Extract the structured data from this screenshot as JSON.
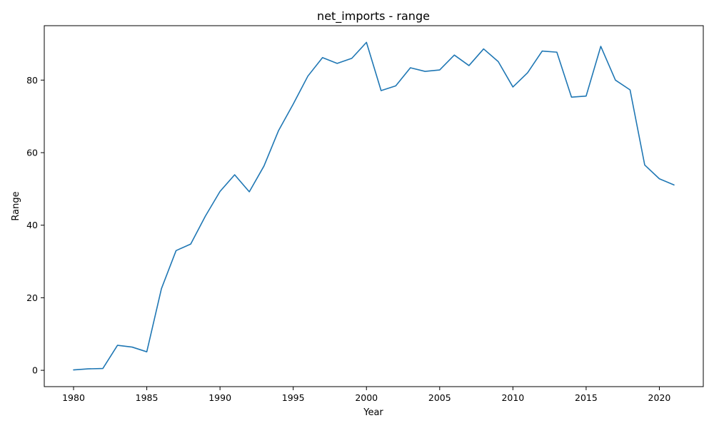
{
  "chart_data": {
    "type": "line",
    "title": "net_imports - range",
    "xlabel": "Year",
    "ylabel": "Range",
    "xlim": [
      1978,
      2023
    ],
    "ylim": [
      -4.5,
      95
    ],
    "xticks": [
      1980,
      1985,
      1990,
      1995,
      2000,
      2005,
      2010,
      2015,
      2020
    ],
    "yticks": [
      0,
      20,
      40,
      60,
      80
    ],
    "grid": false,
    "x": [
      1980,
      1981,
      1982,
      1983,
      1984,
      1985,
      1986,
      1987,
      1988,
      1989,
      1990,
      1991,
      1992,
      1993,
      1994,
      1995,
      1996,
      1997,
      1998,
      1999,
      2000,
      2001,
      2002,
      2003,
      2004,
      2005,
      2006,
      2007,
      2008,
      2009,
      2010,
      2011,
      2012,
      2013,
      2014,
      2015,
      2016,
      2017,
      2018,
      2019,
      2020,
      2021
    ],
    "series": [
      {
        "color": "#1f77b4",
        "values": [
          0.1,
          0.4,
          0.5,
          6.9,
          6.4,
          5.1,
          22.5,
          33.0,
          34.8,
          42.5,
          49.3,
          53.9,
          49.2,
          56.3,
          66.1,
          73.4,
          81.1,
          86.2,
          84.6,
          86.0,
          90.4,
          77.1,
          78.4,
          83.4,
          82.4,
          82.8,
          86.9,
          84.0,
          88.6,
          85.1,
          78.1,
          82.0,
          88.0,
          87.7,
          75.3,
          75.6,
          89.3,
          80.0,
          77.3,
          56.6,
          52.8,
          51.1
        ]
      }
    ]
  }
}
